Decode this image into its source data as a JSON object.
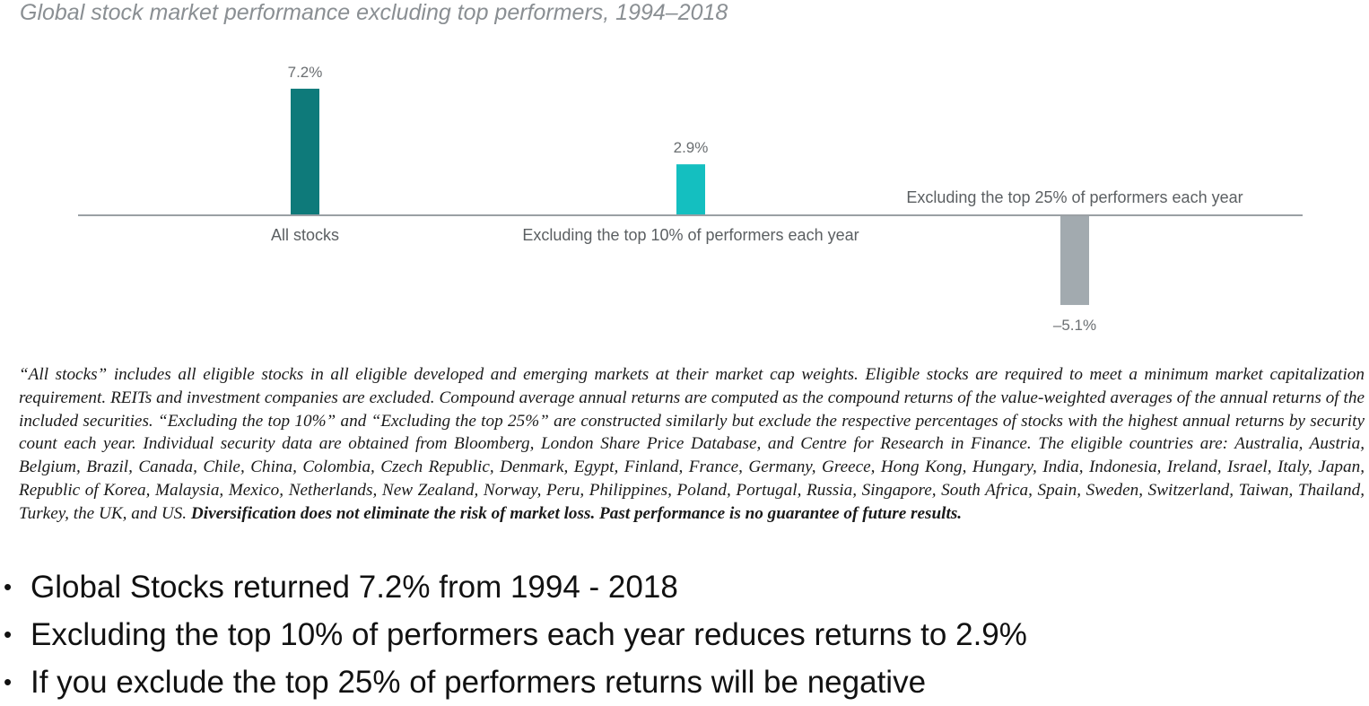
{
  "chart_data": {
    "type": "bar",
    "title": "Global stock market performance excluding top performers, 1994–2018",
    "categories": [
      "All stocks",
      "Excluding the top 10% of performers each year",
      "Excluding the top 25% of performers each year"
    ],
    "values": [
      7.2,
      2.9,
      -5.1
    ],
    "value_labels": [
      "7.2%",
      "2.9%",
      "–5.1%"
    ],
    "colors": [
      "#0e7a7a",
      "#14bfc0",
      "#a2aaaf"
    ],
    "axis_color": "#9aa0a4",
    "grid": false,
    "legend": "none"
  },
  "footnote": {
    "text": "“All stocks” includes all eligible stocks in all eligible developed and emerging markets at their market cap weights. Eligible stocks are required to meet a minimum market capitalization requirement. REITs and investment companies are excluded. Compound average annual returns are computed as the compound returns of the value-weighted averages of the annual returns of the included securities. “Excluding the top 10%” and “Excluding the top 25%” are constructed similarly but exclude the respective percentages of stocks with the highest annual returns by security count each year. Individual security data are obtained from Bloomberg, London Share Price Database, and Centre for Research in Finance. The eligible countries are: Australia, Austria, Belgium, Brazil, Canada, Chile, China, Colombia, Czech Republic, Denmark, Egypt, Finland, France, Germany, Greece, Hong Kong, Hungary, India, Indonesia, Ireland, Israel, Italy, Japan, Republic of Korea, Malaysia, Mexico, Netherlands, New Zealand, Norway, Peru, Philippines, Poland, Portugal, Russia, Singapore, South Africa, Spain, Sweden, Switzerland, Taiwan, Thailand, Turkey, the UK, and US. ",
    "bold_text": "Diversification does not eliminate the risk of market loss. Past performance is no guarantee of future results."
  },
  "bullets": [
    "Global Stocks returned 7.2% from 1994 - 2018",
    "Excluding the top 10% of performers each year reduces returns to 2.9%",
    "If you exclude the top 25% of performers returns will be negative"
  ],
  "bullet_symbol": "•"
}
